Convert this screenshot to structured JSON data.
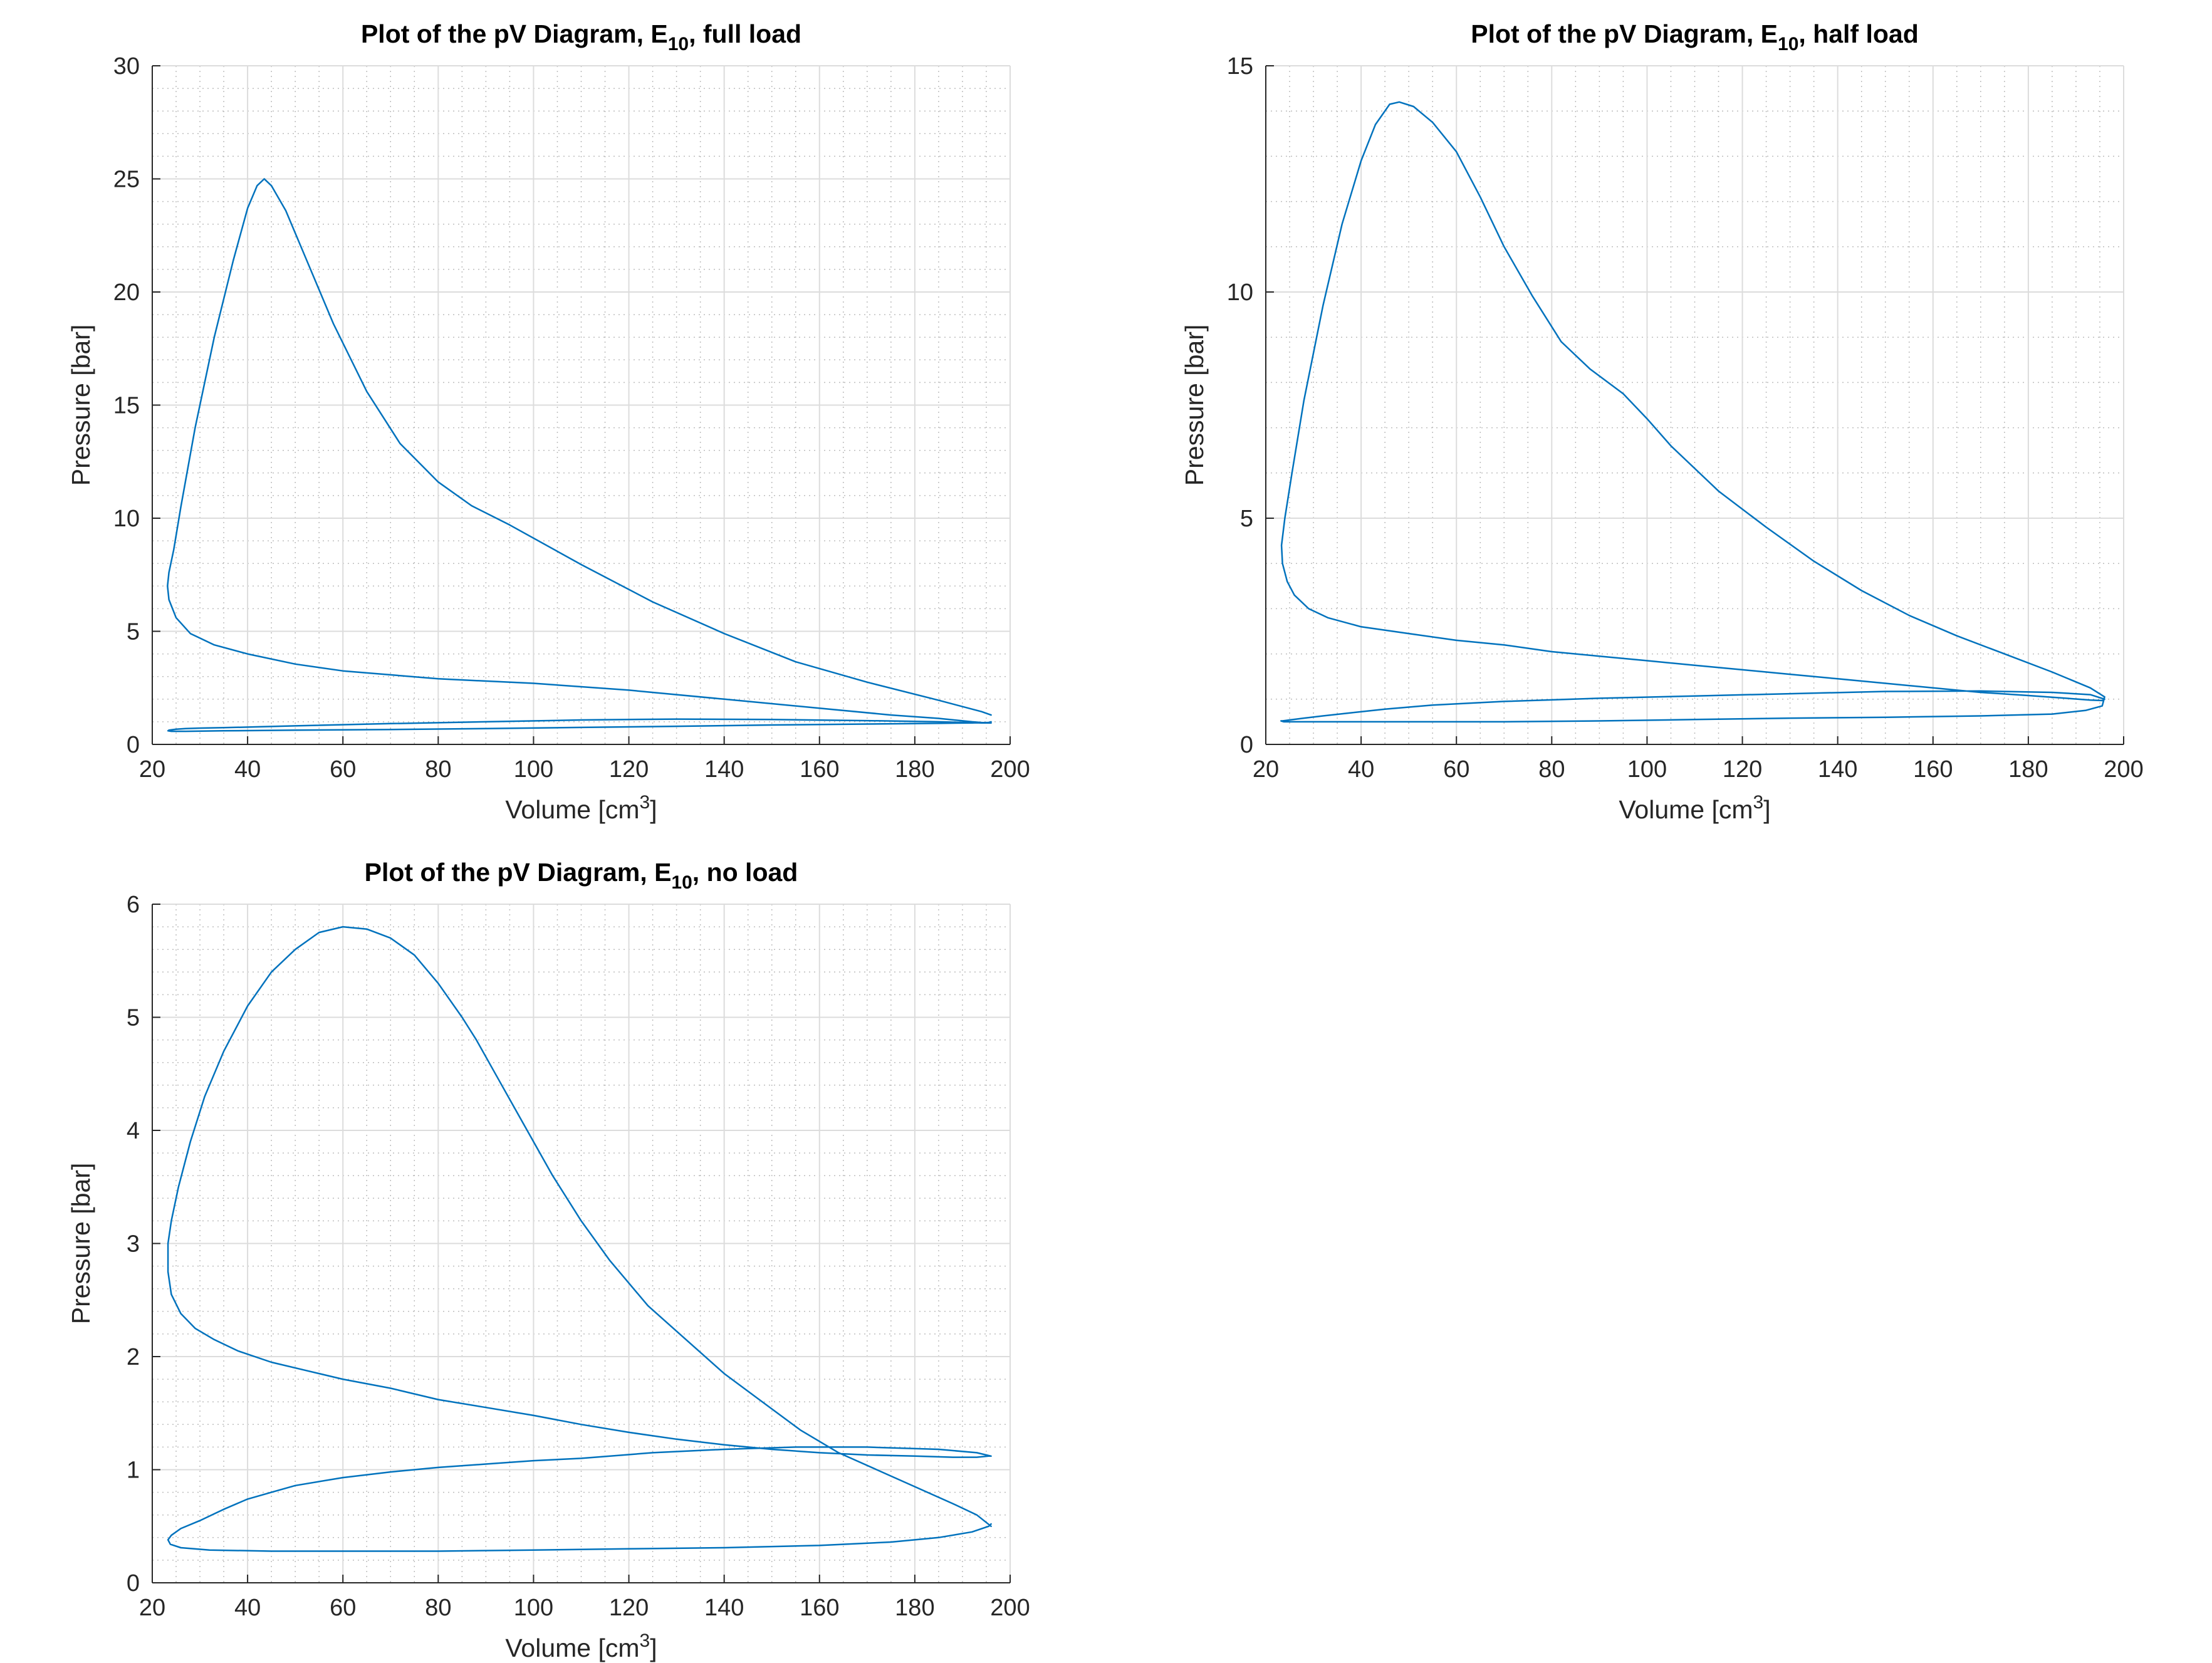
{
  "figure": {
    "line_color": "#0072bd",
    "grid_major_color": "#dcdcdc",
    "grid_minor_color": "#bdbdbd",
    "axis_color": "#262626"
  },
  "chart_data": [
    {
      "id": "full_load",
      "type": "line",
      "title_prefix": "Plot of the pV Diagram, E",
      "title_subscript": "10",
      "title_suffix": ", full load",
      "xlabel_prefix": "Volume [cm",
      "xlabel_superscript": "3",
      "xlabel_suffix": "]",
      "ylabel": "Pressure [bar]",
      "xlim": [
        20,
        200
      ],
      "ylim": [
        0,
        30
      ],
      "xticks": [
        20,
        40,
        60,
        80,
        100,
        120,
        140,
        160,
        180,
        200
      ],
      "yticks": [
        0,
        5,
        10,
        15,
        20,
        25,
        30
      ],
      "grid": true,
      "minor_grid": true,
      "series": [
        {
          "x": [
            196,
            194,
            185,
            170,
            155,
            140,
            125,
            110,
            95,
            87,
            80,
            72,
            65,
            58,
            52,
            48,
            45,
            43.5,
            42,
            40,
            37,
            33,
            29,
            26,
            24.5,
            23.5,
            23.2,
            23.5,
            25,
            28,
            33,
            40,
            50,
            60,
            80,
            100,
            120,
            140,
            160,
            175,
            185,
            192,
            195,
            196,
            194,
            185,
            170,
            150,
            130,
            110,
            90,
            70,
            50,
            35,
            30,
            27,
            25,
            23.5,
            23.3,
            24,
            27,
            35,
            50,
            70,
            90,
            110,
            130,
            150,
            170,
            185,
            192,
            195.5,
            196
          ],
          "y": [
            1.3,
            1.45,
            1.95,
            2.75,
            3.65,
            4.9,
            6.3,
            7.95,
            9.7,
            10.55,
            11.6,
            13.3,
            15.6,
            18.6,
            21.6,
            23.6,
            24.7,
            25.0,
            24.7,
            23.7,
            21.4,
            18.0,
            14.0,
            10.5,
            8.6,
            7.6,
            7.0,
            6.4,
            5.6,
            4.9,
            4.4,
            4.0,
            3.55,
            3.25,
            2.9,
            2.7,
            2.4,
            2.0,
            1.6,
            1.3,
            1.15,
            1.0,
            0.95,
            0.95,
            0.95,
            1.0,
            1.05,
            1.1,
            1.12,
            1.08,
            1.0,
            0.92,
            0.82,
            0.74,
            0.72,
            0.7,
            0.67,
            0.63,
            0.6,
            0.58,
            0.58,
            0.6,
            0.63,
            0.66,
            0.7,
            0.75,
            0.8,
            0.86,
            0.9,
            0.93,
            0.95,
            0.97,
            1.0
          ]
        }
      ]
    },
    {
      "id": "half_load",
      "type": "line",
      "title_prefix": "Plot of the pV Diagram, E",
      "title_subscript": "10",
      "title_suffix": ", half load",
      "xlabel_prefix": "Volume [cm",
      "xlabel_superscript": "3",
      "xlabel_suffix": "]",
      "ylabel": "Pressure [bar]",
      "xlim": [
        20,
        200
      ],
      "ylim": [
        0,
        15
      ],
      "xticks": [
        20,
        40,
        60,
        80,
        100,
        120,
        140,
        160,
        180,
        200
      ],
      "yticks": [
        0,
        5,
        10,
        15
      ],
      "grid": true,
      "minor_grid": true,
      "series": [
        {
          "x": [
            196,
            193,
            185,
            175,
            165,
            155,
            145,
            135,
            125,
            115,
            105,
            100,
            95,
            88,
            82,
            76,
            70,
            65,
            60,
            55,
            51,
            48,
            46,
            43,
            40,
            36,
            32,
            28,
            25.5,
            24,
            23.3,
            23.5,
            24.5,
            26,
            29,
            33,
            40,
            50,
            60,
            70,
            80,
            90,
            100,
            110,
            120,
            130,
            140,
            150,
            160,
            170,
            180,
            188,
            193,
            195.5,
            196,
            193,
            185,
            170,
            150,
            130,
            110,
            90,
            70,
            55,
            45,
            38,
            32,
            28,
            25,
            23.5,
            23.2,
            23.8,
            27,
            35,
            50,
            70,
            90,
            110,
            130,
            150,
            170,
            185,
            192,
            195.5,
            196
          ],
          "y": [
            1.05,
            1.25,
            1.6,
            2.0,
            2.4,
            2.85,
            3.4,
            4.05,
            4.8,
            5.6,
            6.6,
            7.2,
            7.75,
            8.3,
            8.9,
            9.9,
            11.0,
            12.1,
            13.1,
            13.75,
            14.1,
            14.2,
            14.15,
            13.7,
            12.9,
            11.5,
            9.7,
            7.6,
            6.0,
            5.0,
            4.4,
            4.0,
            3.6,
            3.3,
            3.0,
            2.8,
            2.6,
            2.45,
            2.3,
            2.2,
            2.05,
            1.95,
            1.85,
            1.75,
            1.65,
            1.55,
            1.45,
            1.35,
            1.25,
            1.15,
            1.08,
            1.02,
            0.98,
            0.97,
            1.0,
            1.1,
            1.15,
            1.18,
            1.17,
            1.12,
            1.07,
            1.02,
            0.95,
            0.87,
            0.78,
            0.7,
            0.63,
            0.58,
            0.54,
            0.52,
            0.52,
            0.5,
            0.5,
            0.5,
            0.5,
            0.5,
            0.52,
            0.55,
            0.58,
            0.6,
            0.63,
            0.67,
            0.75,
            0.85,
            1.05
          ]
        }
      ]
    },
    {
      "id": "no_load",
      "type": "line",
      "title_prefix": "Plot of the pV Diagram, E",
      "title_subscript": "10",
      "title_suffix": ", no load",
      "xlabel_prefix": "Volume [cm",
      "xlabel_superscript": "3",
      "xlabel_suffix": "]",
      "ylabel": "Pressure [bar]",
      "xlim": [
        20,
        200
      ],
      "ylim": [
        0,
        6
      ],
      "xticks": [
        20,
        40,
        60,
        80,
        100,
        120,
        140,
        160,
        180,
        200
      ],
      "yticks": [
        0,
        1,
        2,
        3,
        4,
        5,
        6
      ],
      "grid": true,
      "minor_grid": true,
      "series": [
        {
          "x": [
            196,
            193,
            188,
            180,
            172,
            164,
            156,
            148,
            140,
            132,
            124,
            116,
            110,
            104,
            98,
            92,
            88,
            85,
            80,
            75,
            70,
            65,
            60,
            55,
            50,
            45,
            40,
            35,
            31,
            28,
            25.5,
            24,
            23.3,
            23.3,
            24,
            26,
            29,
            33,
            38,
            45,
            52,
            60,
            70,
            80,
            90,
            100,
            110,
            120,
            130,
            140,
            150,
            160,
            170,
            180,
            188,
            193,
            195.5,
            196,
            193,
            185,
            170,
            155,
            140,
            125,
            110,
            100,
            90,
            80,
            70,
            60,
            50,
            45,
            40,
            35,
            30,
            26,
            24,
            23.3,
            23.8,
            26,
            32,
            45,
            60,
            80,
            100,
            120,
            140,
            160,
            175,
            185,
            192,
            195.5,
            196
          ],
          "y": [
            0.5,
            0.6,
            0.7,
            0.85,
            1.0,
            1.15,
            1.35,
            1.6,
            1.85,
            2.15,
            2.45,
            2.85,
            3.2,
            3.6,
            4.05,
            4.5,
            4.8,
            5.0,
            5.3,
            5.55,
            5.7,
            5.78,
            5.8,
            5.75,
            5.6,
            5.4,
            5.1,
            4.7,
            4.3,
            3.9,
            3.5,
            3.2,
            3.0,
            2.75,
            2.55,
            2.38,
            2.25,
            2.15,
            2.05,
            1.95,
            1.88,
            1.8,
            1.72,
            1.62,
            1.55,
            1.48,
            1.4,
            1.33,
            1.27,
            1.22,
            1.18,
            1.15,
            1.13,
            1.12,
            1.11,
            1.11,
            1.12,
            1.12,
            1.15,
            1.18,
            1.2,
            1.2,
            1.18,
            1.15,
            1.1,
            1.08,
            1.05,
            1.02,
            0.98,
            0.93,
            0.86,
            0.8,
            0.74,
            0.65,
            0.55,
            0.48,
            0.42,
            0.38,
            0.34,
            0.31,
            0.29,
            0.28,
            0.28,
            0.28,
            0.29,
            0.3,
            0.31,
            0.33,
            0.36,
            0.4,
            0.45,
            0.5,
            0.52
          ]
        }
      ]
    }
  ]
}
